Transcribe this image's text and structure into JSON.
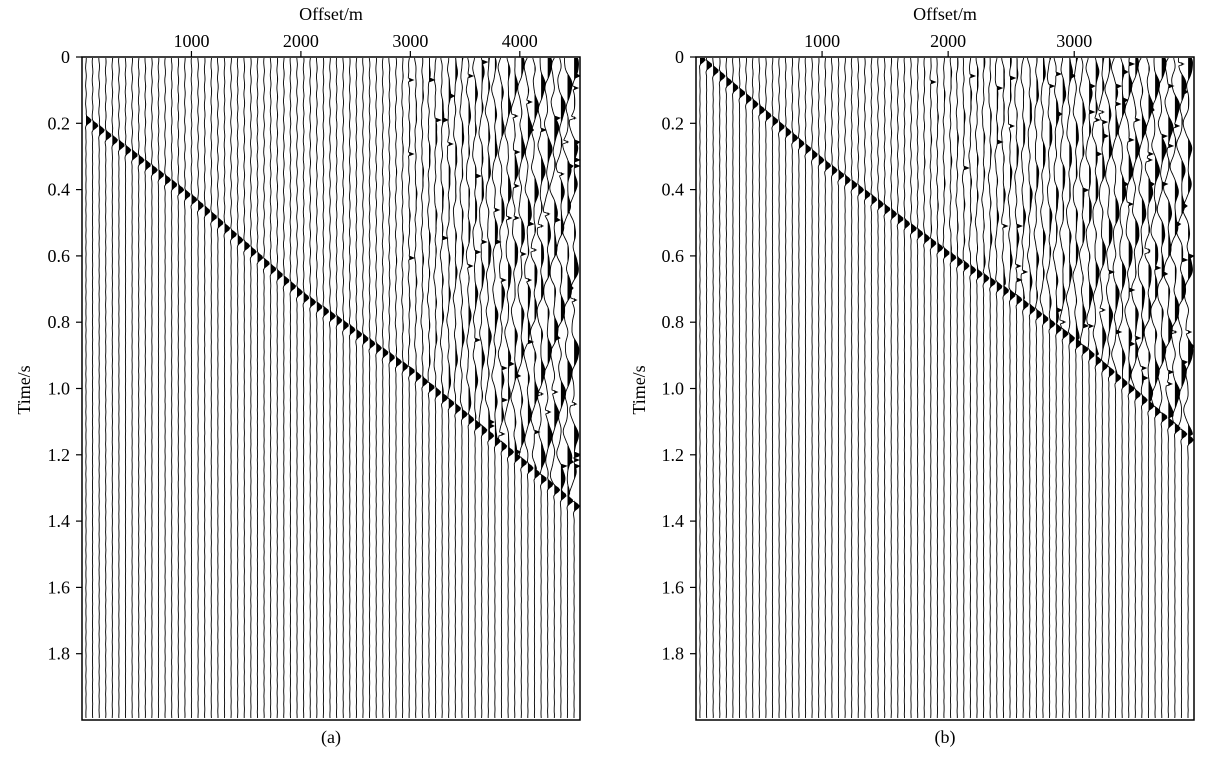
{
  "colors": {
    "ink": "#000000",
    "background": "#ffffff"
  },
  "chart_data": [
    {
      "type": "wiggle",
      "caption": "(a)",
      "xlabel": "Offset/m",
      "ylabel": "Time/s",
      "x_ticks": [
        1000,
        2000,
        3000,
        4000
      ],
      "x_tick_labels": [
        "1000",
        "2000",
        "3000",
        "4000"
      ],
      "y_ticks": [
        0,
        0.2,
        0.4,
        0.6,
        0.8,
        1.0,
        1.2,
        1.4,
        1.6,
        1.8
      ],
      "y_tick_labels": [
        "0",
        "0.2",
        "0.4",
        "0.6",
        "0.8",
        "1.0",
        "1.2",
        "1.4",
        "1.6",
        "1.8"
      ],
      "xlim": [
        0,
        4550
      ],
      "ylim": [
        0,
        2.0
      ],
      "trace_count": 75,
      "first_break": {
        "x": [
          110,
          1000,
          2000,
          3000,
          4000,
          4550
        ],
        "t": [
          0.21,
          0.43,
          0.72,
          0.95,
          1.22,
          1.37
        ]
      },
      "noise_onset_offset": 2700
    },
    {
      "type": "wiggle",
      "caption": "(b)",
      "xlabel": "Offset/m",
      "ylabel": "Time/s",
      "x_ticks": [
        1000,
        2000,
        3000
      ],
      "x_tick_labels": [
        "1000",
        "2000",
        "3000"
      ],
      "y_ticks": [
        0,
        0.2,
        0.4,
        0.6,
        0.8,
        1.0,
        1.2,
        1.4,
        1.6,
        1.8
      ],
      "y_tick_labels": [
        "0",
        "0.2",
        "0.4",
        "0.6",
        "0.8",
        "1.0",
        "1.2",
        "1.4",
        "1.6",
        "1.8"
      ],
      "xlim": [
        0,
        3950
      ],
      "ylim": [
        0,
        2.0
      ],
      "trace_count": 75,
      "first_break": {
        "x": [
          70,
          1000,
          2000,
          2500,
          3000,
          3950
        ],
        "t": [
          0.02,
          0.32,
          0.6,
          0.72,
          0.86,
          1.17
        ]
      },
      "noise_onset_offset": 1600
    }
  ]
}
